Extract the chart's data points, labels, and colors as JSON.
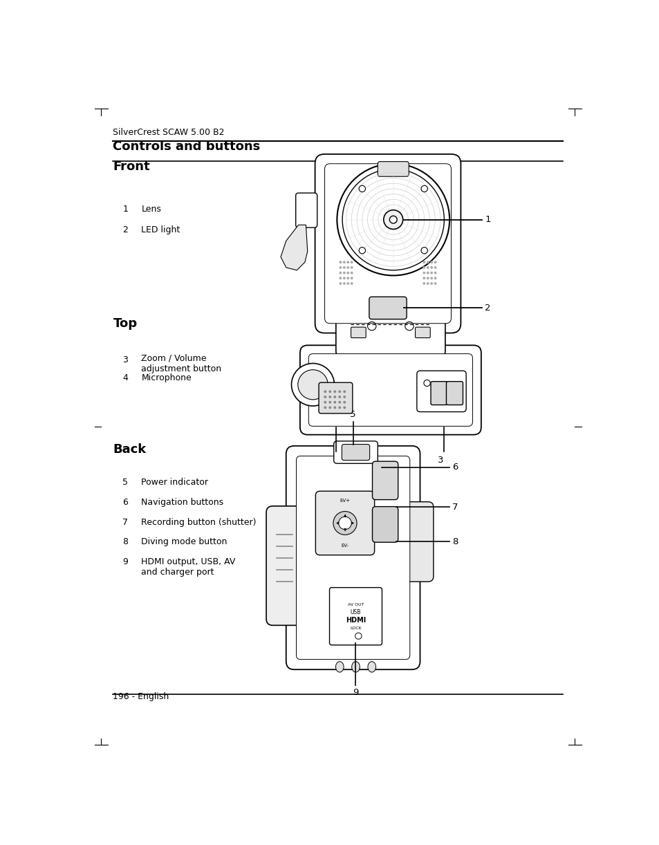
{
  "page_bg": "#ffffff",
  "header_text": "SilverCrest SCAW 5.00 B2",
  "title": "Controls and buttons",
  "section_front": "Front",
  "section_top": "Top",
  "section_back": "Back",
  "footer_text": "196 - English",
  "front_items": [
    {
      "num": "1",
      "label": "Lens"
    },
    {
      "num": "2",
      "label": "LED light"
    }
  ],
  "top_items": [
    {
      "num": "3",
      "label": "Zoom / Volume\nadjustment button"
    },
    {
      "num": "4",
      "label": "Microphone"
    }
  ],
  "back_items": [
    {
      "num": "5",
      "label": "Power indicator"
    },
    {
      "num": "6",
      "label": "Navigation buttons"
    },
    {
      "num": "7",
      "label": "Recording button (shutter)"
    },
    {
      "num": "8",
      "label": "Diving mode button"
    },
    {
      "num": "9",
      "label": "HDMI output, USB, AV\nand charger port"
    }
  ],
  "font_color": "#000000",
  "line_color": "#000000",
  "header_fontsize": 9,
  "title_fontsize": 13,
  "section_fontsize": 13,
  "body_fontsize": 9,
  "footer_fontsize": 9
}
